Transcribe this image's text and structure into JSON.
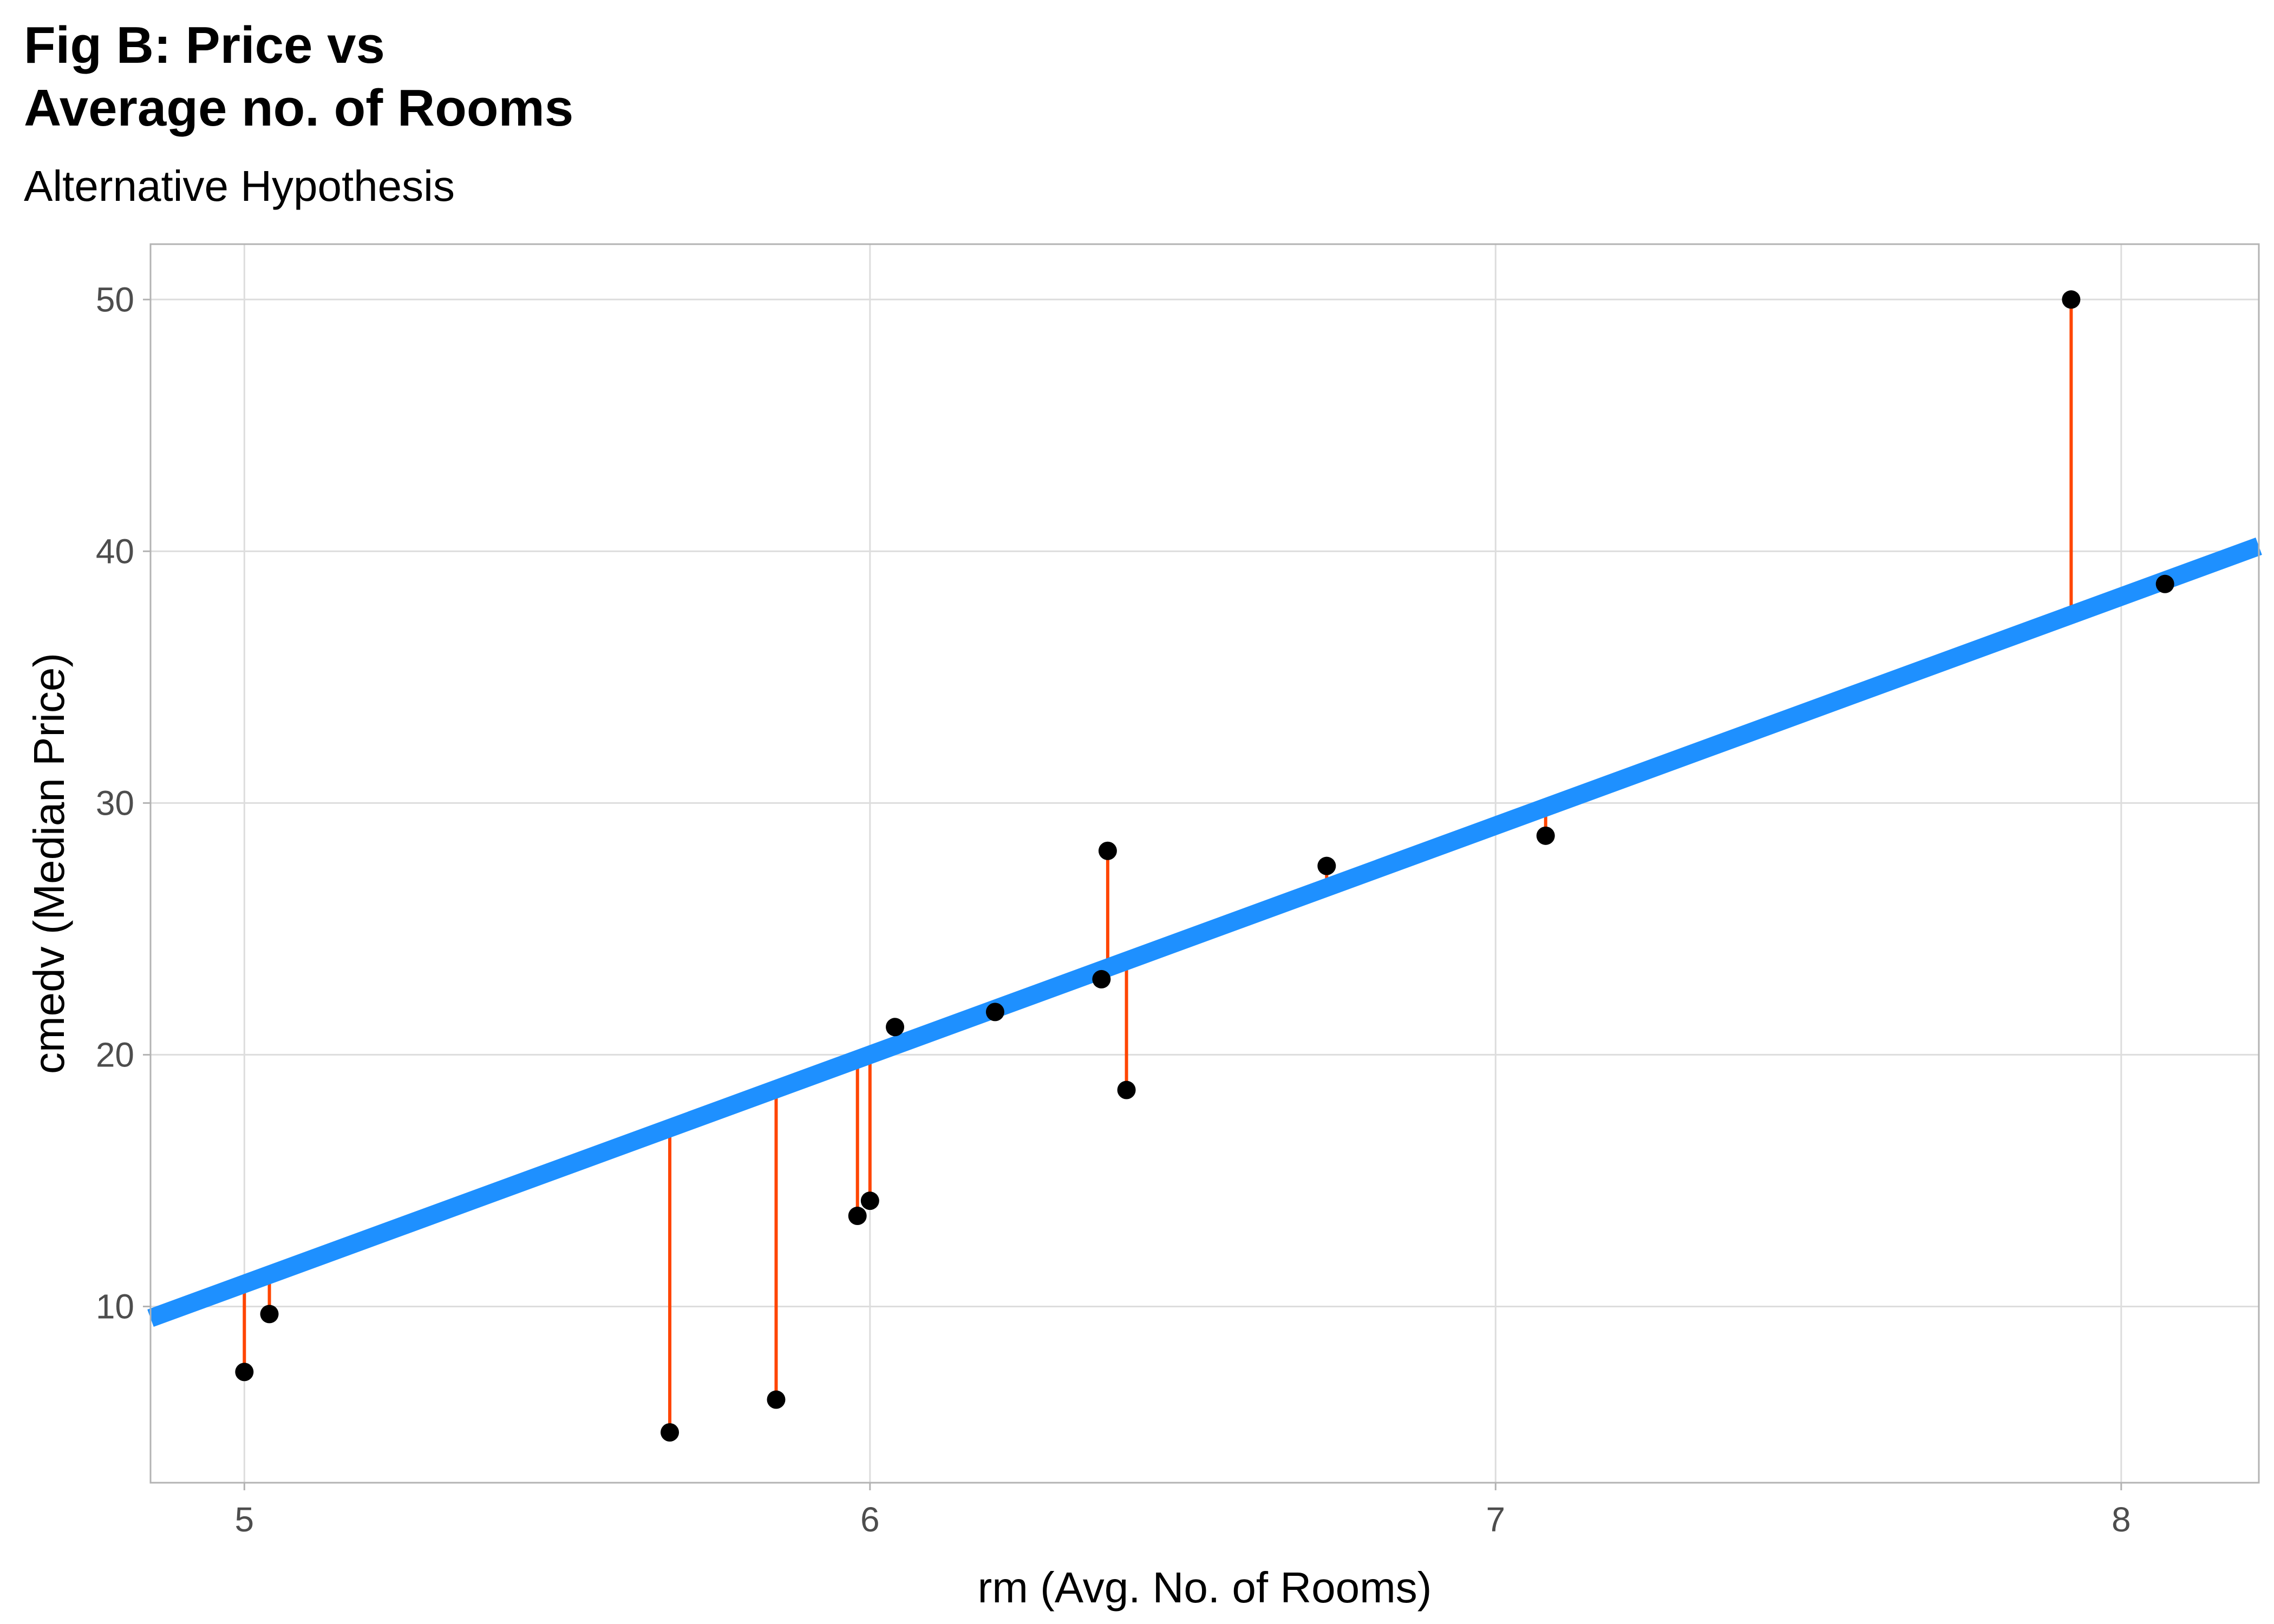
{
  "title_lines": [
    "Fig B: Price vs",
    "Average no. of Rooms"
  ],
  "subtitle": "Alternative Hypothesis",
  "colors": {
    "fit_line": "#1e90ff",
    "residual": "#ff4500",
    "point": "#000000",
    "grid": "#dddddd",
    "panel_border": "#b3b3b3",
    "tick_text": "#4d4d4d",
    "axis_title": "#000000"
  },
  "chart_data": {
    "type": "scatter",
    "title": "Fig B: Price vs Average no. of Rooms",
    "subtitle": "Alternative Hypothesis",
    "xlabel": "rm (Avg. No. of Rooms)",
    "ylabel": "cmedv (Median Price)",
    "xlim": [
      4.85,
      8.22
    ],
    "ylim": [
      3.0,
      52.2
    ],
    "x_ticks": [
      5,
      6,
      7,
      8
    ],
    "x_tick_labels": [
      "5",
      "6",
      "7",
      "8"
    ],
    "y_ticks": [
      10,
      20,
      30,
      40,
      50
    ],
    "y_tick_labels": [
      "10",
      "20",
      "30",
      "40",
      "50"
    ],
    "grid": true,
    "legend": "none",
    "fit_line": {
      "slope": 9.1,
      "intercept": -34.6
    },
    "residual_lines": true,
    "points": [
      {
        "x": 5.0,
        "y": 7.4
      },
      {
        "x": 5.04,
        "y": 9.7
      },
      {
        "x": 5.68,
        "y": 5.0
      },
      {
        "x": 5.85,
        "y": 6.3
      },
      {
        "x": 5.98,
        "y": 13.6
      },
      {
        "x": 6.0,
        "y": 14.2
      },
      {
        "x": 6.04,
        "y": 21.1
      },
      {
        "x": 6.2,
        "y": 21.7
      },
      {
        "x": 6.37,
        "y": 23.0
      },
      {
        "x": 6.38,
        "y": 28.1
      },
      {
        "x": 6.41,
        "y": 18.6
      },
      {
        "x": 6.73,
        "y": 27.5
      },
      {
        "x": 7.08,
        "y": 28.7
      },
      {
        "x": 7.92,
        "y": 50.0
      },
      {
        "x": 8.07,
        "y": 38.7
      }
    ]
  }
}
